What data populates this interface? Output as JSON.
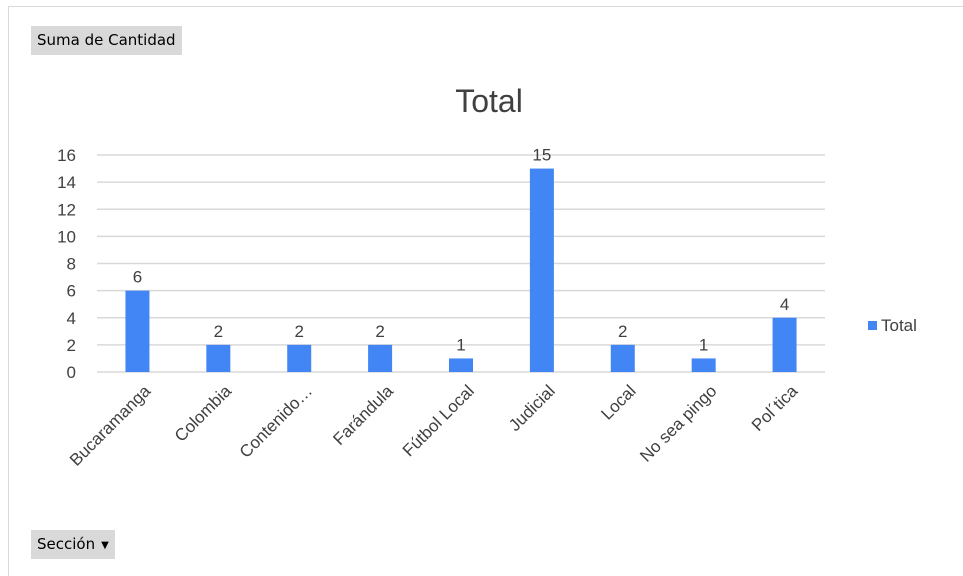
{
  "pivot": {
    "value_field_label": "Suma de Cantidad",
    "axis_field_label": "Sección",
    "axis_field_dropdown_icon": "dropdown-arrow-icon"
  },
  "colors": {
    "bar": "#4285f4",
    "grid": "#d9d9d9",
    "text": "#404040"
  },
  "chart_data": {
    "type": "bar",
    "title": "Total",
    "categories": [
      "Bucaramanga",
      "Colombia",
      "Contenido…",
      "Farándula",
      "Fútbol Local",
      "Judicial",
      "Local",
      "No sea pingo",
      "Pol´tica"
    ],
    "series": [
      {
        "name": "Total",
        "values": [
          6,
          2,
          2,
          2,
          1,
          15,
          2,
          1,
          4
        ]
      }
    ],
    "ylim": [
      0,
      16
    ],
    "yticks": [
      0,
      2,
      4,
      6,
      8,
      10,
      12,
      14,
      16
    ],
    "grid": true,
    "data_labels": true,
    "legend_position": "right"
  }
}
